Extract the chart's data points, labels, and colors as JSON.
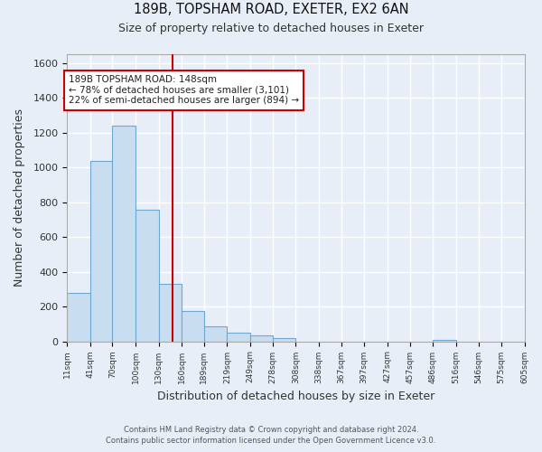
{
  "title_line1": "189B, TOPSHAM ROAD, EXETER, EX2 6AN",
  "title_line2": "Size of property relative to detached houses in Exeter",
  "xlabel": "Distribution of detached houses by size in Exeter",
  "ylabel": "Number of detached properties",
  "bar_color": "#c8ddf0",
  "bar_edge_color": "#6ea8d0",
  "vline_x": 148,
  "vline_color": "#cc0000",
  "annotation_text": "189B TOPSHAM ROAD: 148sqm\n← 78% of detached houses are smaller (3,101)\n22% of semi-detached houses are larger (894) →",
  "annotation_box_color": "white",
  "annotation_box_edge": "#cc0000",
  "bin_edges": [
    11,
    41,
    70,
    100,
    130,
    160,
    189,
    219,
    249,
    278,
    308,
    338,
    367,
    397,
    427,
    457,
    486,
    516,
    546,
    575,
    605
  ],
  "bar_heights": [
    280,
    1035,
    1240,
    755,
    330,
    175,
    85,
    50,
    35,
    20,
    0,
    0,
    0,
    0,
    0,
    0,
    10,
    0,
    0,
    0
  ],
  "ylim": [
    0,
    1650
  ],
  "yticks": [
    0,
    200,
    400,
    600,
    800,
    1000,
    1200,
    1400,
    1600
  ],
  "footer_line1": "Contains HM Land Registry data © Crown copyright and database right 2024.",
  "footer_line2": "Contains public sector information licensed under the Open Government Licence v3.0.",
  "background_color": "#e8eef8",
  "grid_color": "#ffffff",
  "spine_color": "#aaaaaa"
}
